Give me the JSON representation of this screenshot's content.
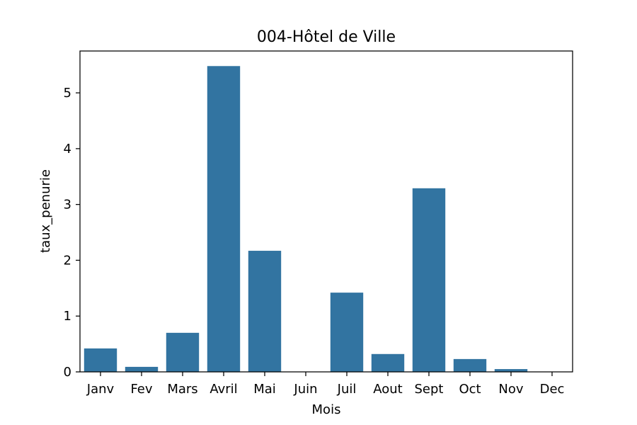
{
  "chart_data": {
    "type": "bar",
    "title": "004-Hôtel de Ville",
    "xlabel": "Mois",
    "ylabel": "taux_penurie",
    "categories": [
      "Janv",
      "Fev",
      "Mars",
      "Avril",
      "Mai",
      "Juin",
      "Juil",
      "Aout",
      "Sept",
      "Oct",
      "Nov",
      "Dec"
    ],
    "values": [
      0.42,
      0.09,
      0.7,
      5.48,
      2.17,
      0.0,
      1.42,
      0.32,
      3.29,
      0.23,
      0.05,
      0.0
    ],
    "yticks": [
      "0",
      "1",
      "2",
      "3",
      "4",
      "5"
    ],
    "ylim": [
      0,
      5.75
    ],
    "grid": false,
    "bar_color": "#3274a1"
  }
}
